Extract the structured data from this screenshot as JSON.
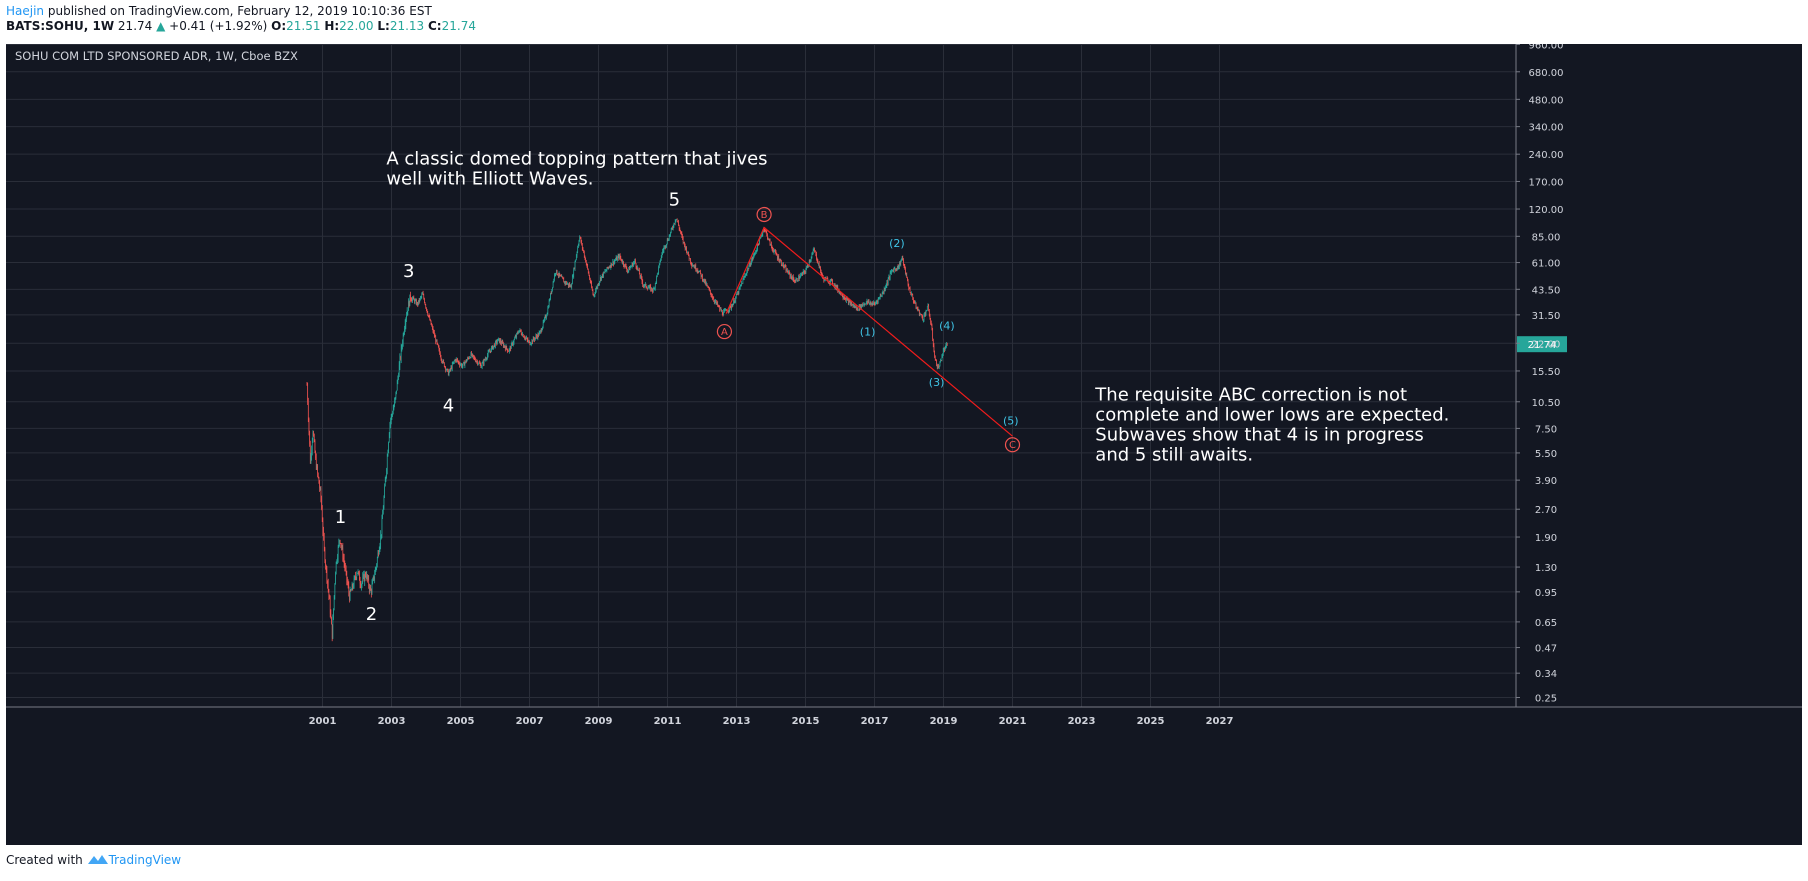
{
  "header": {
    "author": "Haejin",
    "published": "published on TradingView.com, February 12, 2019 10:10:36 EST",
    "symbol": "BATS:SOHU, 1W",
    "last": "21.74",
    "up_arrow": "▲",
    "change": "+0.41 (+1.92%)",
    "o_label": "O:",
    "o": "21.51",
    "h_label": "H:",
    "h": "22.00",
    "l_label": "L:",
    "l": "21.13",
    "c_label": "C:",
    "c": "21.74"
  },
  "footer": {
    "created": "Created with",
    "brand": "TradingView",
    "logo_icon": "tradingview-logo-icon"
  },
  "colors": {
    "background": "#131722",
    "grid": "#2a2e39",
    "up": "#26a69a",
    "down": "#ef5350",
    "trendline": "#ef1c1c",
    "subwave": "#3fc4e6",
    "price_tag": "#26a69a"
  },
  "chart_data": {
    "type": "candlestick",
    "title": "SOHU COM LTD SPONSORED ADR, 1W, Cboe BZX",
    "y_scale": "log",
    "y_ticks": [
      "960.00",
      "680.00",
      "480.00",
      "340.00",
      "240.00",
      "170.00",
      "120.00",
      "85.00",
      "61.00",
      "43.50",
      "31.50",
      "22.00",
      "15.50",
      "10.50",
      "7.50",
      "5.50",
      "3.90",
      "2.70",
      "1.90",
      "1.30",
      "0.95",
      "0.65",
      "0.47",
      "0.34",
      "0.25"
    ],
    "x_ticks": [
      "2001",
      "2003",
      "2005",
      "2007",
      "2009",
      "2011",
      "2013",
      "2015",
      "2017",
      "2019",
      "2021",
      "2023",
      "2025",
      "2027"
    ],
    "last_price": "21.74",
    "price_path": [
      [
        2000.55,
        13.0
      ],
      [
        2000.65,
        4.8
      ],
      [
        2000.72,
        7.5
      ],
      [
        2000.8,
        5.0
      ],
      [
        2000.95,
        3.2
      ],
      [
        2001.05,
        1.6
      ],
      [
        2001.2,
        0.85
      ],
      [
        2001.28,
        0.55
      ],
      [
        2001.38,
        1.3
      ],
      [
        2001.5,
        1.9
      ],
      [
        2001.62,
        1.4
      ],
      [
        2001.78,
        0.9
      ],
      [
        2001.9,
        1.05
      ],
      [
        2002.0,
        1.25
      ],
      [
        2002.12,
        1.05
      ],
      [
        2002.25,
        1.2
      ],
      [
        2002.4,
        0.95
      ],
      [
        2002.55,
        1.3
      ],
      [
        2002.7,
        2.0
      ],
      [
        2002.85,
        4.5
      ],
      [
        2002.95,
        8.0
      ],
      [
        2003.1,
        10.5
      ],
      [
        2003.25,
        18.0
      ],
      [
        2003.4,
        30.0
      ],
      [
        2003.55,
        40.0
      ],
      [
        2003.75,
        36.0
      ],
      [
        2003.9,
        41.0
      ],
      [
        2004.05,
        32.0
      ],
      [
        2004.25,
        24.0
      ],
      [
        2004.45,
        18.0
      ],
      [
        2004.65,
        15.0
      ],
      [
        2004.85,
        18.0
      ],
      [
        2005.05,
        16.5
      ],
      [
        2005.3,
        19.0
      ],
      [
        2005.6,
        16.5
      ],
      [
        2005.85,
        20.0
      ],
      [
        2006.1,
        23.0
      ],
      [
        2006.4,
        20.0
      ],
      [
        2006.7,
        26.0
      ],
      [
        2007.0,
        22.0
      ],
      [
        2007.3,
        25.0
      ],
      [
        2007.5,
        32.0
      ],
      [
        2007.75,
        55.0
      ],
      [
        2008.0,
        48.0
      ],
      [
        2008.2,
        45.0
      ],
      [
        2008.45,
        85.0
      ],
      [
        2008.65,
        60.0
      ],
      [
        2008.85,
        40.0
      ],
      [
        2009.05,
        50.0
      ],
      [
        2009.3,
        58.0
      ],
      [
        2009.6,
        66.0
      ],
      [
        2009.85,
        55.0
      ],
      [
        2010.05,
        62.0
      ],
      [
        2010.3,
        46.0
      ],
      [
        2010.6,
        43.0
      ],
      [
        2010.85,
        70.0
      ],
      [
        2011.05,
        85.0
      ],
      [
        2011.25,
        108.0
      ],
      [
        2011.45,
        80.0
      ],
      [
        2011.7,
        60.0
      ],
      [
        2011.9,
        55.0
      ],
      [
        2012.15,
        45.0
      ],
      [
        2012.35,
        38.0
      ],
      [
        2012.6,
        32.0
      ],
      [
        2012.85,
        35.0
      ],
      [
        2013.05,
        42.0
      ],
      [
        2013.3,
        55.0
      ],
      [
        2013.55,
        70.0
      ],
      [
        2013.8,
        95.0
      ],
      [
        2014.0,
        75.0
      ],
      [
        2014.2,
        65.0
      ],
      [
        2014.45,
        55.0
      ],
      [
        2014.7,
        48.0
      ],
      [
        2015.0,
        55.0
      ],
      [
        2015.25,
        72.0
      ],
      [
        2015.5,
        50.0
      ],
      [
        2015.75,
        48.0
      ],
      [
        2016.0,
        42.0
      ],
      [
        2016.25,
        37.0
      ],
      [
        2016.5,
        34.0
      ],
      [
        2016.75,
        37.0
      ],
      [
        2017.0,
        36.0
      ],
      [
        2017.25,
        42.0
      ],
      [
        2017.5,
        55.0
      ],
      [
        2017.7,
        58.0
      ],
      [
        2017.8,
        65.0
      ],
      [
        2018.0,
        44.0
      ],
      [
        2018.2,
        35.0
      ],
      [
        2018.4,
        30.0
      ],
      [
        2018.55,
        35.0
      ],
      [
        2018.65,
        27.0
      ],
      [
        2018.75,
        18.0
      ],
      [
        2018.85,
        16.0
      ],
      [
        2019.0,
        20.0
      ],
      [
        2019.12,
        21.74
      ]
    ],
    "trendline": [
      [
        2012.7,
        32.0
      ],
      [
        2013.8,
        95.0
      ],
      [
        2021.0,
        6.8
      ]
    ],
    "labels": [
      {
        "text": "1",
        "x": 2001.52,
        "y": 2.45,
        "style": "major"
      },
      {
        "text": "2",
        "x": 2002.42,
        "y": 0.72,
        "style": "major"
      },
      {
        "text": "3",
        "x": 2003.5,
        "y": 55.0,
        "style": "major"
      },
      {
        "text": "4",
        "x": 2004.65,
        "y": 10.0,
        "style": "major"
      },
      {
        "text": "5",
        "x": 2011.2,
        "y": 135.0,
        "style": "major"
      },
      {
        "text": "A",
        "x": 2012.65,
        "y": 25.5,
        "style": "circle"
      },
      {
        "text": "B",
        "x": 2013.8,
        "y": 112.0,
        "style": "circle"
      },
      {
        "text": "C",
        "x": 2021.0,
        "y": 6.1,
        "style": "circle"
      },
      {
        "text": "(1)",
        "x": 2016.8,
        "y": 25.5,
        "style": "sub"
      },
      {
        "text": "(2)",
        "x": 2017.65,
        "y": 78.0,
        "style": "sub"
      },
      {
        "text": "(3)",
        "x": 2018.8,
        "y": 13.5,
        "style": "sub"
      },
      {
        "text": "(4)",
        "x": 2019.1,
        "y": 27.5,
        "style": "sub"
      },
      {
        "text": "(5)",
        "x": 2020.95,
        "y": 8.3,
        "style": "sub"
      }
    ],
    "annotations": [
      {
        "lines": [
          "A classic domed topping pattern that jives",
          "well with Elliott Waves."
        ],
        "x": 2002.85,
        "y": 210.0
      },
      {
        "lines": [
          "The requisite ABC correction is not",
          "complete and lower lows are expected.",
          "Subwaves show that 4 is in progress",
          "and 5 still awaits."
        ],
        "x": 2023.4,
        "y": 10.7
      }
    ]
  }
}
